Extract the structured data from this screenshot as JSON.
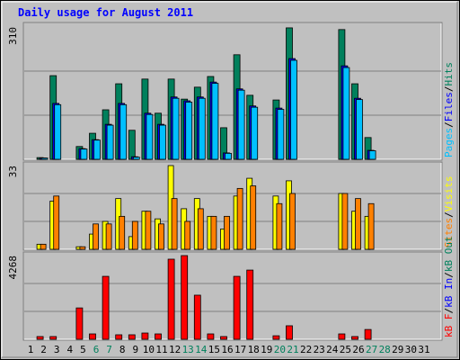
{
  "title": "Daily usage for August 2011",
  "legend_separator": "/",
  "chart_data": [
    {
      "type": "bar",
      "ylim": [
        0,
        310
      ],
      "yticks": [
        310
      ],
      "grid": true,
      "series": [
        {
          "name": "Hits",
          "color": "#00805c",
          "values": [
            0,
            4,
            196,
            0,
            30,
            61,
            116,
            177,
            68,
            188,
            108,
            188,
            141,
            169,
            194,
            74,
            245,
            150,
            0,
            139,
            308,
            0,
            0,
            0,
            304,
            177,
            51,
            0,
            0,
            0,
            0
          ]
        },
        {
          "name": "Files",
          "color": "#0000ff",
          "values": [
            0,
            3,
            131,
            0,
            25,
            46,
            82,
            131,
            6,
            108,
            82,
            146,
            137,
            146,
            181,
            15,
            165,
            125,
            0,
            120,
            236,
            0,
            0,
            0,
            219,
            143,
            21,
            0,
            0,
            0,
            0
          ]
        },
        {
          "name": "Pages",
          "color": "#00c0ff",
          "values": [
            0,
            3,
            128,
            0,
            24,
            45,
            80,
            128,
            5,
            105,
            80,
            143,
            134,
            143,
            178,
            14,
            162,
            122,
            0,
            117,
            232,
            0,
            0,
            0,
            215,
            140,
            20,
            0,
            0,
            0,
            0
          ]
        }
      ]
    },
    {
      "type": "bar",
      "ylim": [
        0,
        33
      ],
      "yticks": [
        33
      ],
      "grid": true,
      "series": [
        {
          "name": "Visits",
          "color": "#ffff00",
          "values": [
            0,
            2,
            19,
            0,
            1,
            6,
            11,
            20,
            5,
            15,
            12,
            33,
            16,
            20,
            13,
            8,
            21,
            28,
            0,
            21,
            27,
            0,
            0,
            0,
            22,
            15,
            13,
            0,
            0,
            0,
            0
          ]
        },
        {
          "name": "Sites",
          "color": "#ff8000",
          "values": [
            0,
            2,
            21,
            0,
            1,
            10,
            10,
            13,
            11,
            15,
            10,
            20,
            11,
            16,
            13,
            13,
            24,
            25,
            0,
            18,
            22,
            0,
            0,
            0,
            22,
            20,
            18,
            0,
            0,
            0,
            0
          ]
        }
      ]
    },
    {
      "type": "bar",
      "ylim": [
        0,
        4268
      ],
      "yticks": [
        4268
      ],
      "grid": true,
      "categories": [
        "1",
        "2",
        "3",
        "4",
        "5",
        "6",
        "7",
        "8",
        "9",
        "10",
        "11",
        "12",
        "13",
        "14",
        "15",
        "16",
        "17",
        "18",
        "19",
        "20",
        "21",
        "22",
        "23",
        "24",
        "25",
        "26",
        "27",
        "28",
        "29",
        "30",
        "31"
      ],
      "category_colors": [
        "#000000",
        "#000000",
        "#000000",
        "#000000",
        "#000000",
        "#00805c",
        "#00805c",
        "#000000",
        "#000000",
        "#000000",
        "#000000",
        "#000000",
        "#00805c",
        "#00805c",
        "#000000",
        "#000000",
        "#000000",
        "#000000",
        "#000000",
        "#00805c",
        "#00805c",
        "#000000",
        "#000000",
        "#000000",
        "#000000",
        "#000000",
        "#00805c",
        "#00805c",
        "#000000",
        "#000000",
        "#000000"
      ],
      "series": [
        {
          "name": "kB Out",
          "color": "#00805c",
          "values": [
            0,
            0,
            0,
            0,
            0,
            0,
            0,
            0,
            0,
            0,
            0,
            0,
            0,
            0,
            0,
            0,
            0,
            0,
            0,
            0,
            0,
            0,
            0,
            0,
            0,
            0,
            0,
            0,
            0,
            0,
            0
          ]
        },
        {
          "name": "kB In",
          "color": "#0000ff",
          "values": [
            0,
            0,
            0,
            0,
            0,
            0,
            0,
            0,
            0,
            0,
            0,
            0,
            0,
            0,
            0,
            0,
            0,
            0,
            0,
            0,
            0,
            0,
            0,
            0,
            0,
            0,
            0,
            0,
            0,
            0,
            0
          ]
        },
        {
          "name": "kB F",
          "color": "#ff0000",
          "values": [
            0,
            140,
            140,
            0,
            1600,
            275,
            3210,
            230,
            230,
            320,
            275,
            4085,
            4268,
            2250,
            275,
            140,
            3210,
            3530,
            0,
            180,
            690,
            0,
            0,
            0,
            275,
            140,
            500,
            0,
            0,
            0,
            0
          ]
        }
      ]
    }
  ]
}
